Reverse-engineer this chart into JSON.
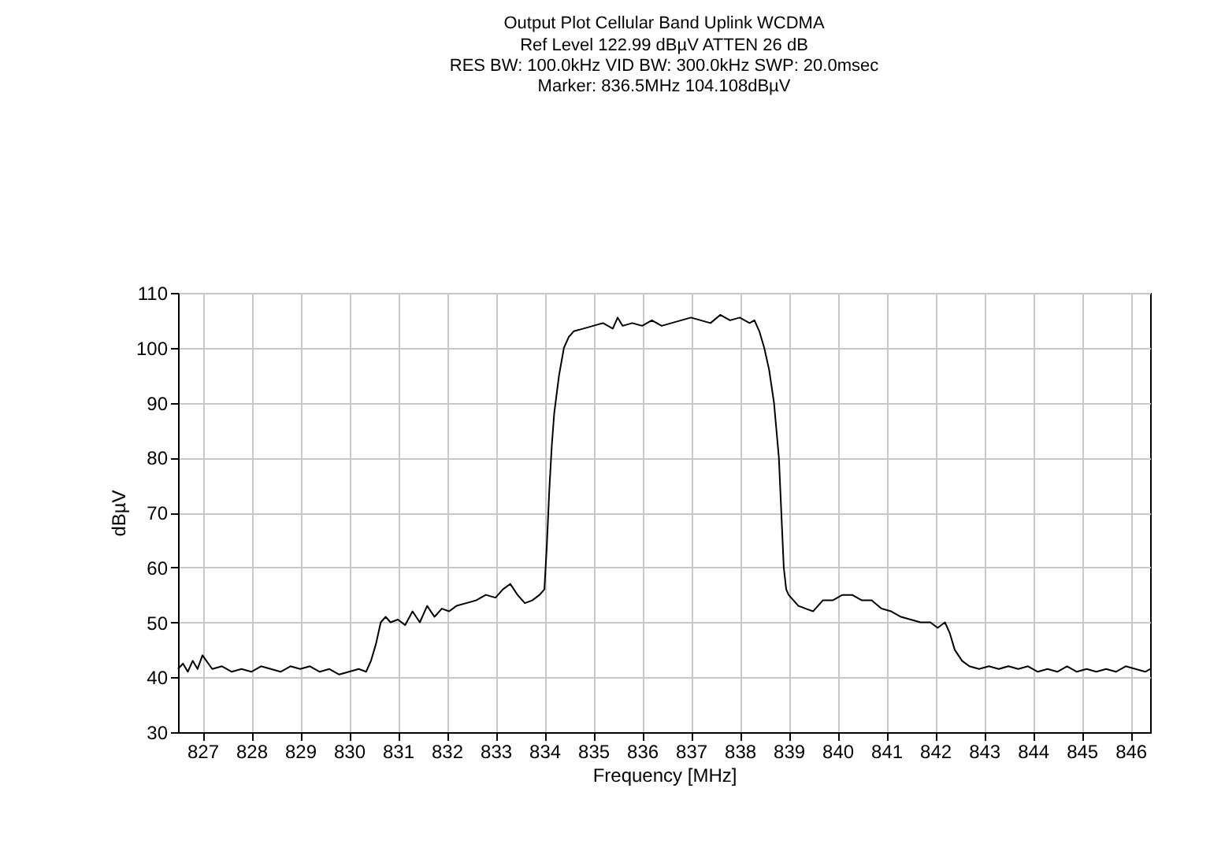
{
  "chart_data": {
    "type": "line",
    "title": "Output Plot Cellular Band Uplink WCDMA",
    "annotations": [
      "Ref Level 122.99 dBµV    ATTEN 26 dB",
      "RES BW: 100.0kHz  VID BW: 300.0kHz  SWP: 20.0msec",
      "Marker: 836.5MHz  104.108dBµV"
    ],
    "xlabel": "Frequency [MHz]",
    "ylabel": "dBµV",
    "series": [
      {
        "color": "#000000",
        "x": [
          826.5,
          826.6,
          826.7,
          826.8,
          826.9,
          827.0,
          827.2,
          827.4,
          827.6,
          827.8,
          828.0,
          828.2,
          828.4,
          828.6,
          828.8,
          829.0,
          829.2,
          829.4,
          829.6,
          829.8,
          830.0,
          830.2,
          830.35,
          830.45,
          830.55,
          830.65,
          830.75,
          830.85,
          831.0,
          831.15,
          831.3,
          831.45,
          831.6,
          831.75,
          831.9,
          832.05,
          832.2,
          832.4,
          832.6,
          832.8,
          833.0,
          833.15,
          833.3,
          833.45,
          833.6,
          833.75,
          833.9,
          834.0,
          834.05,
          834.1,
          834.15,
          834.2,
          834.3,
          834.4,
          834.5,
          834.6,
          834.8,
          835.0,
          835.2,
          835.4,
          835.5,
          835.6,
          835.8,
          836.0,
          836.2,
          836.4,
          836.6,
          836.8,
          837.0,
          837.2,
          837.4,
          837.6,
          837.8,
          838.0,
          838.2,
          838.3,
          838.4,
          838.5,
          838.6,
          838.7,
          838.8,
          838.85,
          838.9,
          838.95,
          839.0,
          839.1,
          839.2,
          839.35,
          839.5,
          839.7,
          839.9,
          840.1,
          840.3,
          840.5,
          840.7,
          840.9,
          841.1,
          841.3,
          841.5,
          841.7,
          841.9,
          842.05,
          842.2,
          842.3,
          842.4,
          842.55,
          842.7,
          842.9,
          843.1,
          843.3,
          843.5,
          843.7,
          843.9,
          844.1,
          844.3,
          844.5,
          844.7,
          844.9,
          845.1,
          845.3,
          845.5,
          845.7,
          845.9,
          846.1,
          846.3,
          846.4
        ],
        "values": [
          41.5,
          42.5,
          41,
          43,
          41.5,
          44,
          41.5,
          42,
          41,
          41.5,
          41,
          42,
          41.5,
          41,
          42,
          41.5,
          42,
          41,
          41.5,
          40.5,
          41,
          41.5,
          41,
          43,
          46,
          50,
          51,
          50,
          50.5,
          49.5,
          52,
          50,
          53,
          51,
          52.5,
          52,
          53,
          53.5,
          54,
          55,
          54.5,
          56,
          57,
          55,
          53.5,
          54,
          55,
          56,
          64,
          74,
          82,
          88,
          95,
          100,
          102,
          103,
          103.5,
          104,
          104.5,
          103.5,
          105.5,
          104,
          104.5,
          104,
          105,
          104,
          104.5,
          105,
          105.5,
          105,
          104.5,
          106,
          105,
          105.5,
          104.5,
          105,
          103,
          100,
          96,
          90,
          80,
          70,
          60,
          56,
          55,
          54,
          53,
          52.5,
          52,
          54,
          54,
          55,
          55,
          54,
          54,
          52.5,
          52,
          51,
          50.5,
          50,
          50,
          49,
          50,
          48,
          45,
          43,
          42,
          41.5,
          42,
          41.5,
          42,
          41.5,
          42,
          41,
          41.5,
          41,
          42,
          41,
          41.5,
          41,
          41.5,
          41,
          42,
          41.5,
          41,
          41.5
        ]
      }
    ],
    "xlim": [
      826.5,
      846.4
    ],
    "xticks": [
      827,
      828,
      829,
      830,
      831,
      832,
      833,
      834,
      835,
      836,
      837,
      838,
      839,
      840,
      841,
      842,
      843,
      844,
      845,
      846
    ],
    "ylim": [
      30,
      110
    ],
    "yticks": [
      30,
      40,
      50,
      60,
      70,
      80,
      90,
      100,
      110
    ],
    "grid": true,
    "marker": "none",
    "line_style": "solid"
  }
}
